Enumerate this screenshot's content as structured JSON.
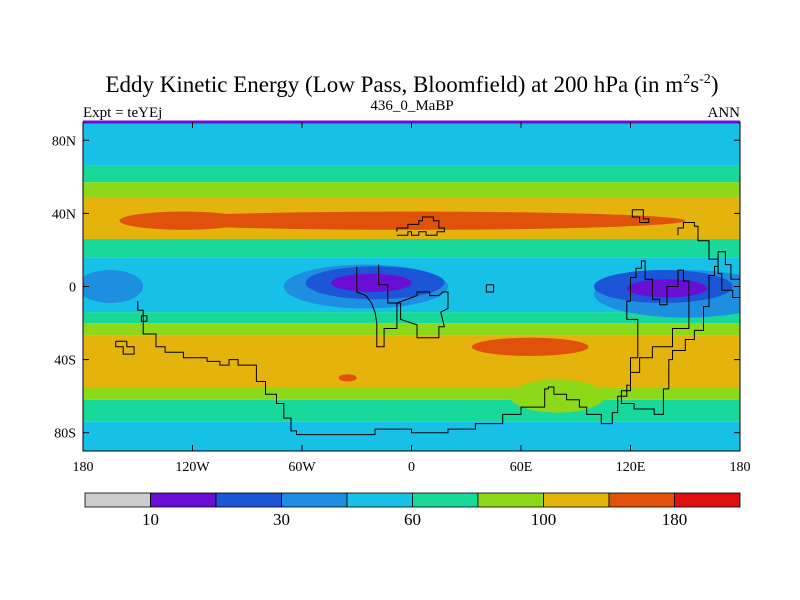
{
  "chart_data": {
    "type": "filled-contour-map",
    "title": "Eddy Kinetic Energy (Low Pass, Bloomfield) at 200 hPa (in m",
    "title_units_sup_1": "2",
    "title_units_mid": "s",
    "title_units_sup_2": "-2",
    "title_units_close": ")",
    "subtitle_left": "Expt = teYEj",
    "subtitle_center": "436_0_MaBP",
    "subtitle_right": "ANN",
    "x_ticks": [
      "180",
      "120W",
      "60W",
      "0",
      "60E",
      "120E",
      "180"
    ],
    "x_range": [
      -180,
      180
    ],
    "y_ticks": [
      "80N",
      "40N",
      "0",
      "40S",
      "80S"
    ],
    "y_tick_values": [
      80,
      40,
      0,
      -40,
      -80
    ],
    "y_range": [
      -90,
      90
    ],
    "contour_levels": [
      10,
      20,
      30,
      45,
      60,
      80,
      100,
      140,
      180
    ],
    "colorbar_labels": [
      "10",
      "30",
      "60",
      "100",
      "180"
    ],
    "colorbar_label_levels": [
      10,
      30,
      60,
      100,
      180
    ],
    "colors": [
      "#cccccc",
      "#6a0ed6",
      "#1a56d6",
      "#1e8ee0",
      "#16c0e6",
      "#18d89a",
      "#8ed81a",
      "#e4b40c",
      "#e0520a",
      "#e0100e"
    ],
    "bands": [
      {
        "lat": [
          66,
          90
        ],
        "band": 4,
        "level": "45-60"
      },
      {
        "lat": [
          57,
          66
        ],
        "band": 5,
        "level": "60-80"
      },
      {
        "lat": [
          49,
          57
        ],
        "band": 6,
        "level": "80-100"
      },
      {
        "lat": [
          26,
          49
        ],
        "band": 7,
        "level": "100-140"
      },
      {
        "lat": [
          16,
          26
        ],
        "band": 5,
        "level": "60-80"
      },
      {
        "lat": [
          -14,
          16
        ],
        "band": 4,
        "level": "45-60"
      },
      {
        "lat": [
          -20,
          -14
        ],
        "band": 5,
        "level": "60-80"
      },
      {
        "lat": [
          -27,
          -20
        ],
        "band": 6,
        "level": "80-100"
      },
      {
        "lat": [
          -55,
          -27
        ],
        "band": 7,
        "level": "100-140"
      },
      {
        "lat": [
          -62,
          -55
        ],
        "band": 6,
        "level": "80-100"
      },
      {
        "lat": [
          -74,
          -62
        ],
        "band": 5,
        "level": "60-80"
      },
      {
        "lat": [
          -90,
          -74
        ],
        "band": 4,
        "level": "45-60"
      }
    ],
    "blobs": [
      {
        "lon": 0,
        "lat": 36,
        "rlon": 150,
        "rlat": 5,
        "band": 8,
        "level": "140-180"
      },
      {
        "lon": -125,
        "lat": 36,
        "rlon": 35,
        "rlat": 5,
        "band": 8,
        "level": "140-180"
      },
      {
        "lon": 65,
        "lat": -33,
        "rlon": 32,
        "rlat": 5,
        "band": 8,
        "level": "140-180"
      },
      {
        "lon": -35,
        "lat": -50,
        "rlon": 5,
        "rlat": 2,
        "band": 8,
        "level": "140-180"
      },
      {
        "lon": -165,
        "lat": 0,
        "rlon": 18,
        "rlat": 9,
        "band": 3,
        "level": "30-45"
      },
      {
        "lon": 150,
        "lat": -4,
        "rlon": 50,
        "rlat": 13,
        "band": 3,
        "level": "30-45"
      },
      {
        "lon": -25,
        "lat": 0,
        "rlon": 45,
        "rlat": 12,
        "band": 3,
        "level": "30-45"
      },
      {
        "lon": -20,
        "lat": 2,
        "rlon": 38,
        "rlat": 9,
        "band": 2,
        "level": "20-30"
      },
      {
        "lon": 138,
        "lat": 0,
        "rlon": 38,
        "rlat": 9,
        "band": 2,
        "level": "20-30"
      },
      {
        "lon": -22,
        "lat": 2,
        "rlon": 22,
        "rlat": 5,
        "band": 1,
        "level": "10-20"
      },
      {
        "lon": 140,
        "lat": -1,
        "rlon": 22,
        "rlat": 5,
        "band": 1,
        "level": "10-20"
      },
      {
        "lon": 80,
        "lat": -60,
        "rlon": 26,
        "rlat": 9,
        "band": 6,
        "level": "80-100"
      }
    ],
    "coastlines": [
      [
        [
          -30,
          11
        ],
        [
          -30,
          -3
        ],
        [
          -25,
          -5
        ],
        [
          -22,
          -9
        ],
        [
          -20,
          -14
        ],
        [
          -19,
          -20
        ],
        [
          -19,
          -33
        ],
        [
          -15,
          -33
        ],
        [
          -15,
          -23
        ],
        [
          -8,
          -23
        ],
        [
          -8,
          -9
        ],
        [
          3,
          -5
        ],
        [
          3,
          -3
        ],
        [
          10,
          -3
        ],
        [
          10,
          -5
        ],
        [
          15,
          -5
        ],
        [
          17,
          -3
        ],
        [
          20,
          -3
        ],
        [
          20,
          -12
        ],
        [
          16,
          -14
        ],
        [
          18,
          -22
        ],
        [
          15,
          -22
        ],
        [
          15,
          -28
        ],
        [
          3,
          -28
        ],
        [
          3,
          -21
        ],
        [
          -6,
          -18
        ],
        [
          -6,
          -9
        ],
        [
          -13,
          -9
        ],
        [
          -13,
          1
        ],
        [
          -18,
          1
        ],
        [
          -18,
          12
        ]
      ],
      [
        [
          -8,
          30
        ],
        [
          -8,
          32
        ],
        [
          -2,
          32
        ],
        [
          -2,
          34
        ],
        [
          4,
          34
        ],
        [
          4,
          36
        ],
        [
          6,
          36
        ],
        [
          6,
          38
        ],
        [
          12,
          38
        ],
        [
          12,
          36
        ],
        [
          15,
          36
        ],
        [
          15,
          32
        ],
        [
          18,
          32
        ],
        [
          18,
          30
        ],
        [
          14,
          30
        ],
        [
          14,
          28
        ],
        [
          8,
          28
        ],
        [
          8,
          30
        ],
        [
          4,
          30
        ],
        [
          4,
          28
        ],
        [
          0,
          28
        ],
        [
          0,
          30
        ],
        [
          -2,
          30
        ],
        [
          -2,
          28
        ],
        [
          -8,
          28
        ]
      ],
      [
        [
          -150,
          -8
        ],
        [
          -150,
          -13
        ],
        [
          -147,
          -13
        ],
        [
          -147,
          -26
        ],
        [
          -140,
          -26
        ],
        [
          -140,
          -33
        ],
        [
          -135,
          -33
        ],
        [
          -135,
          -36
        ],
        [
          -125,
          -36
        ],
        [
          -125,
          -39
        ],
        [
          -112,
          -39
        ],
        [
          -112,
          -41
        ],
        [
          -105,
          -41
        ],
        [
          -105,
          -43
        ],
        [
          -100,
          -43
        ],
        [
          -100,
          -40
        ],
        [
          -95,
          -40
        ],
        [
          -95,
          -43
        ],
        [
          -85,
          -43
        ],
        [
          -85,
          -52
        ],
        [
          -80,
          -52
        ],
        [
          -80,
          -59
        ],
        [
          -74,
          -59
        ],
        [
          -74,
          -64
        ],
        [
          -70,
          -64
        ],
        [
          -70,
          -72
        ],
        [
          -66,
          -72
        ],
        [
          -66,
          -79
        ],
        [
          -63,
          -79
        ],
        [
          -63,
          -81
        ],
        [
          -20,
          -81
        ],
        [
          -20,
          -78
        ],
        [
          0,
          -78
        ],
        [
          0,
          -80
        ],
        [
          20,
          -80
        ],
        [
          20,
          -78
        ],
        [
          35,
          -78
        ],
        [
          35,
          -75
        ],
        [
          50,
          -75
        ],
        [
          50,
          -70
        ],
        [
          60,
          -70
        ],
        [
          60,
          -66
        ],
        [
          73,
          -66
        ],
        [
          73,
          -56
        ],
        [
          75,
          -56
        ],
        [
          75,
          -55
        ],
        [
          78,
          -55
        ],
        [
          78,
          -59
        ],
        [
          85,
          -59
        ],
        [
          85,
          -62
        ],
        [
          92,
          -62
        ],
        [
          92,
          -66
        ],
        [
          96,
          -66
        ],
        [
          96,
          -70
        ],
        [
          104,
          -70
        ],
        [
          104,
          -75
        ],
        [
          110,
          -75
        ],
        [
          110,
          -69
        ],
        [
          113,
          -69
        ],
        [
          113,
          -60
        ],
        [
          118,
          -60
        ],
        [
          118,
          -54
        ],
        [
          120,
          -54
        ],
        [
          120,
          -39
        ],
        [
          124,
          -39
        ],
        [
          124,
          -18
        ],
        [
          118,
          -18
        ],
        [
          118,
          -8
        ],
        [
          120,
          -8
        ],
        [
          120,
          5
        ],
        [
          123,
          5
        ],
        [
          123,
          10
        ],
        [
          126,
          10
        ],
        [
          126,
          14
        ],
        [
          128,
          14
        ],
        [
          128,
          4
        ],
        [
          132,
          4
        ],
        [
          132,
          -7
        ],
        [
          136,
          -7
        ],
        [
          136,
          -10
        ],
        [
          140,
          -10
        ],
        [
          140,
          0
        ],
        [
          146,
          0
        ],
        [
          146,
          9
        ],
        [
          149,
          9
        ],
        [
          149,
          3
        ],
        [
          152,
          3
        ],
        [
          152,
          -23
        ],
        [
          143,
          -23
        ],
        [
          143,
          -33
        ],
        [
          132,
          -33
        ],
        [
          132,
          -39
        ],
        [
          125,
          -39
        ],
        [
          125,
          -47
        ],
        [
          120,
          -47
        ],
        [
          120,
          -57
        ],
        [
          115,
          -57
        ],
        [
          115,
          -64
        ],
        [
          122,
          -64
        ],
        [
          122,
          -67
        ],
        [
          133,
          -67
        ],
        [
          133,
          -70
        ],
        [
          138,
          -70
        ],
        [
          138,
          -56
        ],
        [
          141,
          -56
        ],
        [
          141,
          -40
        ],
        [
          143,
          -40
        ],
        [
          143,
          -35
        ],
        [
          150,
          -35
        ],
        [
          150,
          -29
        ],
        [
          155,
          -29
        ],
        [
          155,
          -24
        ],
        [
          160,
          -24
        ],
        [
          160,
          -11
        ],
        [
          163,
          -11
        ],
        [
          163,
          6
        ],
        [
          166,
          6
        ],
        [
          166,
          11
        ],
        [
          168,
          11
        ],
        [
          168,
          19
        ],
        [
          172,
          19
        ],
        [
          172,
          12
        ],
        [
          175,
          12
        ],
        [
          175,
          4
        ],
        [
          180,
          4
        ],
        [
          180,
          -6
        ],
        [
          176,
          -6
        ],
        [
          176,
          -2
        ],
        [
          170,
          -2
        ],
        [
          170,
          7
        ],
        [
          168,
          7
        ],
        [
          168,
          15
        ],
        [
          163,
          15
        ],
        [
          163,
          25
        ],
        [
          157,
          25
        ],
        [
          157,
          33
        ],
        [
          155,
          33
        ],
        [
          155,
          35
        ],
        [
          149,
          35
        ],
        [
          149,
          32
        ],
        [
          146,
          32
        ],
        [
          146,
          28
        ]
      ],
      [
        [
          121,
          42
        ],
        [
          127,
          42
        ],
        [
          127,
          37
        ],
        [
          130,
          37
        ],
        [
          130,
          35
        ],
        [
          125,
          35
        ],
        [
          125,
          38
        ],
        [
          121,
          38
        ],
        [
          121,
          42
        ]
      ],
      [
        [
          41,
          1
        ],
        [
          45,
          1
        ],
        [
          45,
          -3
        ],
        [
          41,
          -3
        ],
        [
          41,
          1
        ]
      ],
      [
        [
          -148,
          -16
        ],
        [
          -145,
          -16
        ],
        [
          -145,
          -19
        ],
        [
          -148,
          -19
        ],
        [
          -148,
          -16
        ]
      ],
      [
        [
          -162,
          -30
        ],
        [
          -156,
          -30
        ],
        [
          -156,
          -33
        ],
        [
          -152,
          -33
        ],
        [
          -152,
          -37
        ],
        [
          -158,
          -37
        ],
        [
          -158,
          -33
        ],
        [
          -162,
          -33
        ],
        [
          -162,
          -30
        ]
      ]
    ]
  }
}
